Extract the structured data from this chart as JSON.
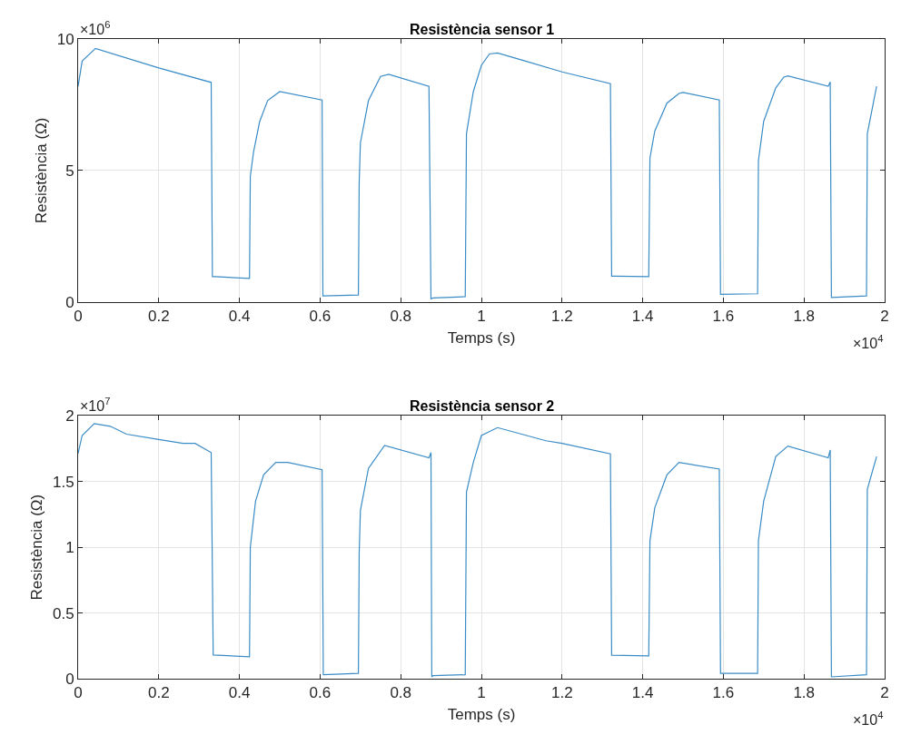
{
  "chart_data": [
    {
      "type": "line",
      "title": "Resistència sensor 1",
      "xlabel": "Temps (s)",
      "ylabel": "Resistència (Ω)",
      "x": [
        0,
        0.01,
        0.043,
        0.2,
        0.33,
        0.333,
        0.34,
        0.425,
        0.427,
        0.435,
        0.45,
        0.47,
        0.5,
        0.605,
        0.607,
        0.695,
        0.697,
        0.7,
        0.72,
        0.75,
        0.77,
        0.87,
        0.875,
        0.88,
        0.96,
        0.963,
        0.98,
        1.0,
        1.02,
        1.04,
        1.1,
        1.2,
        1.32,
        1.323,
        1.33,
        1.415,
        1.418,
        1.43,
        1.46,
        1.49,
        1.5,
        1.59,
        1.593,
        1.685,
        1.687,
        1.7,
        1.73,
        1.75,
        1.76,
        1.86,
        1.865,
        1.868,
        1.955,
        1.957,
        1.98
      ],
      "series": [
        {
          "color": "#3a8cc6",
          "values": [
            8.2,
            9.16,
            9.64,
            8.9,
            8.35,
            0.96,
            0.96,
            0.89,
            4.78,
            5.7,
            6.85,
            7.66,
            8.0,
            7.68,
            0.23,
            0.26,
            4.55,
            6.05,
            7.66,
            8.58,
            8.66,
            8.2,
            0.12,
            0.15,
            0.2,
            6.4,
            8.0,
            9.0,
            9.43,
            9.47,
            9.2,
            8.75,
            8.3,
            0.98,
            0.98,
            0.96,
            5.48,
            6.5,
            7.56,
            7.93,
            7.97,
            7.68,
            0.29,
            0.31,
            5.37,
            6.87,
            8.14,
            8.55,
            8.6,
            8.2,
            8.37,
            0.17,
            0.23,
            6.4,
            8.2
          ]
        }
      ],
      "xlim": [
        0,
        2
      ],
      "xticks": [
        0,
        0.2,
        0.4,
        0.6,
        0.8,
        1,
        1.2,
        1.4,
        1.6,
        1.8,
        2
      ],
      "ylim": [
        0,
        10
      ],
      "yticks": [
        0,
        5,
        10
      ],
      "grid": true,
      "annotations": [
        "×10$^{6}$",
        "×10$^{4}$"
      ]
    },
    {
      "type": "line",
      "title": "Resistència sensor 2",
      "xlabel": "Temps (s)",
      "ylabel": "Resistència (Ω)",
      "x": [
        0,
        0.01,
        0.04,
        0.08,
        0.12,
        0.2,
        0.26,
        0.29,
        0.33,
        0.335,
        0.425,
        0.427,
        0.44,
        0.46,
        0.49,
        0.52,
        0.605,
        0.608,
        0.695,
        0.697,
        0.7,
        0.72,
        0.76,
        0.87,
        0.875,
        0.877,
        0.88,
        0.96,
        0.963,
        0.98,
        1.0,
        1.04,
        1.1,
        1.16,
        1.2,
        1.32,
        1.323,
        1.415,
        1.418,
        1.43,
        1.46,
        1.49,
        1.59,
        1.593,
        1.685,
        1.687,
        1.7,
        1.73,
        1.76,
        1.86,
        1.865,
        1.868,
        1.955,
        1.957,
        1.98
      ],
      "series": [
        {
          "color": "#3a8cc6",
          "values": [
            1.714,
            1.85,
            1.94,
            1.92,
            1.86,
            1.82,
            1.79,
            1.79,
            1.72,
            0.18,
            0.167,
            1.0,
            1.35,
            1.55,
            1.645,
            1.645,
            1.59,
            0.03,
            0.041,
            0.96,
            1.28,
            1.6,
            1.775,
            1.68,
            1.72,
            0.014,
            0.023,
            0.03,
            1.42,
            1.645,
            1.85,
            1.91,
            1.86,
            1.81,
            1.79,
            1.71,
            0.179,
            0.174,
            1.05,
            1.3,
            1.55,
            1.645,
            1.595,
            0.041,
            0.041,
            1.05,
            1.35,
            1.69,
            1.77,
            1.68,
            1.74,
            0.014,
            0.03,
            1.44,
            1.69
          ]
        }
      ],
      "xlim": [
        0,
        2
      ],
      "xticks": [
        0,
        0.2,
        0.4,
        0.6,
        0.8,
        1,
        1.2,
        1.4,
        1.6,
        1.8,
        2
      ],
      "ylim": [
        0,
        2
      ],
      "yticks": [
        0,
        0.5,
        1,
        1.5,
        2
      ],
      "grid": true,
      "annotations": [
        "×10$^{7}$",
        "×10$^{4}$"
      ]
    }
  ]
}
